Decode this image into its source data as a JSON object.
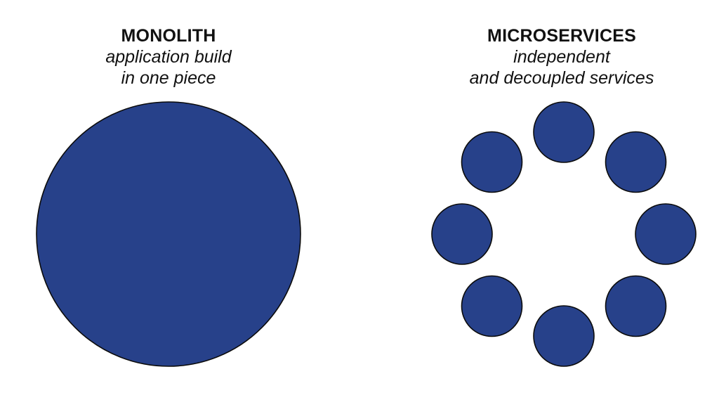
{
  "monolith": {
    "title": "MONOLITH",
    "subtitle_lines": [
      "application build",
      "in one piece"
    ]
  },
  "microservices": {
    "title": "MICROSERVICES",
    "subtitle_lines": [
      "independent",
      "and decoupled services"
    ],
    "service_count": 8
  },
  "colors": {
    "fill": "#27418a",
    "stroke": "#0b0b0b",
    "text": "#111111"
  }
}
